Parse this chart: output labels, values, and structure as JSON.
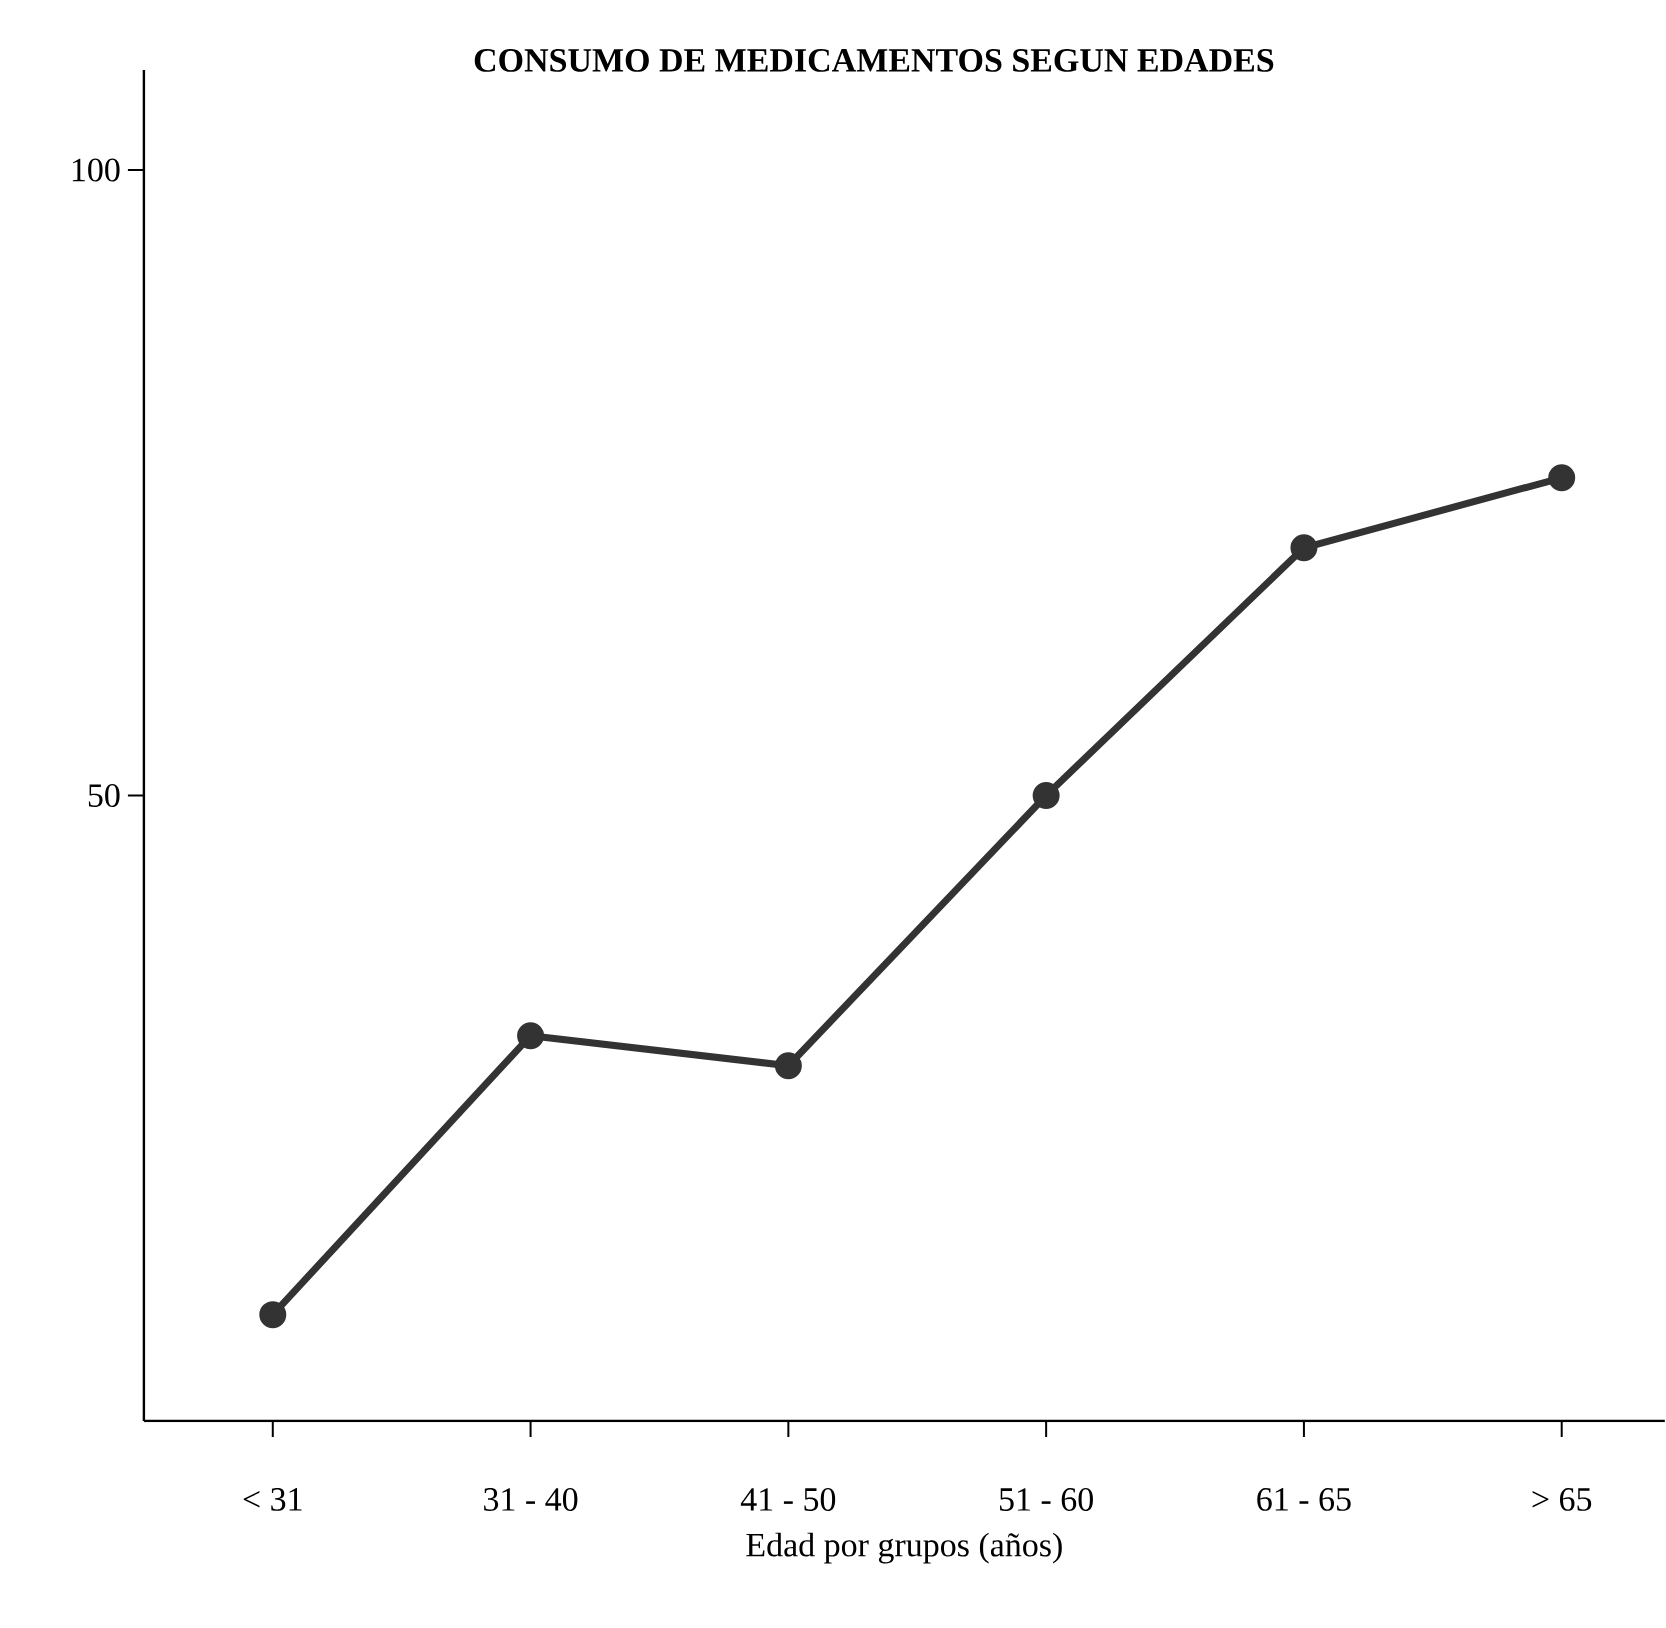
{
  "chart_data": {
    "type": "line",
    "title": "CONSUMO DE MEDICAMENTOS SEGUN EDADES",
    "xlabel": "Edad por grupos (años)",
    "categories": [
      "< 31",
      "31 - 40",
      "41 - 50",
      "51 - 60",
      "61 - 65",
      "> 65"
    ],
    "values": [
      8.5,
      30.8,
      28.4,
      50,
      69.8,
      75.4
    ],
    "color": "#333333",
    "marker": "circle",
    "ylim": [
      0,
      108
    ],
    "yticks": [
      50,
      100
    ]
  }
}
